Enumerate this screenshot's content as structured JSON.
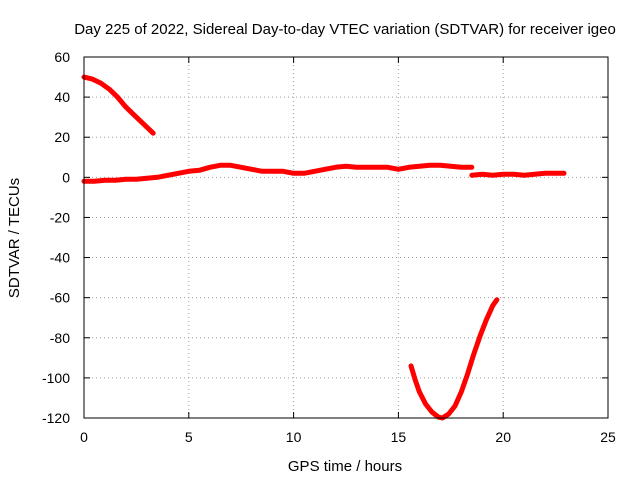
{
  "chart_data": {
    "type": "line",
    "title": "Day 225 of 2022, Sidereal Day-to-day VTEC variation (SDTVAR) for receiver igeo",
    "xlabel": "GPS time / hours",
    "ylabel": "SDTVAR / TECUs",
    "xlim": [
      0,
      25
    ],
    "ylim": [
      -120,
      60
    ],
    "xticks": [
      0,
      5,
      10,
      15,
      20,
      25
    ],
    "yticks": [
      60,
      40,
      20,
      0,
      -20,
      -40,
      -60,
      -80,
      -100,
      -120
    ],
    "grid": true,
    "legend": "none",
    "series_color": "#ff0000",
    "series": [
      {
        "x": [
          0,
          0.4,
          0.8,
          1.2,
          1.6,
          2.0,
          2.4,
          2.8,
          3.3
        ],
        "y": [
          50,
          49,
          47,
          44,
          40,
          35,
          31,
          27,
          22
        ]
      },
      {
        "x": [
          0,
          0.5,
          1,
          1.5,
          2,
          2.5,
          3,
          3.5,
          4,
          4.5,
          5,
          5.5,
          6,
          6.5,
          7,
          7.5,
          8,
          8.5,
          9,
          9.5,
          10,
          10.5,
          11,
          11.5,
          12,
          12.5,
          13,
          13.5,
          14,
          14.5,
          15,
          15.5,
          16,
          16.5,
          17,
          17.5,
          18,
          18.5
        ],
        "y": [
          -2,
          -2,
          -1.5,
          -1.5,
          -1,
          -1,
          -0.5,
          0,
          1,
          2,
          3,
          3.5,
          5,
          6,
          6,
          5,
          4,
          3,
          3,
          3,
          2,
          2,
          3,
          4,
          5,
          5.5,
          5,
          5,
          5,
          5,
          4,
          5,
          5.5,
          6,
          6,
          5.5,
          5,
          5
        ]
      },
      {
        "x": [
          18.5,
          19,
          19.5,
          20,
          20.5,
          21,
          21.5,
          22,
          22.5,
          22.9
        ],
        "y": [
          1,
          1.5,
          1,
          1.5,
          1.5,
          1,
          1.5,
          2,
          2,
          2
        ]
      },
      {
        "x": [
          15.6,
          15.8,
          16.0,
          16.3,
          16.6,
          16.9,
          17.1,
          17.4,
          17.7,
          18.0,
          18.3,
          18.6,
          18.9,
          19.2,
          19.5,
          19.7
        ],
        "y": [
          -94,
          -101,
          -107,
          -113,
          -117,
          -119.5,
          -120,
          -118,
          -114,
          -107,
          -98,
          -88,
          -79,
          -71,
          -64,
          -61
        ]
      }
    ]
  }
}
